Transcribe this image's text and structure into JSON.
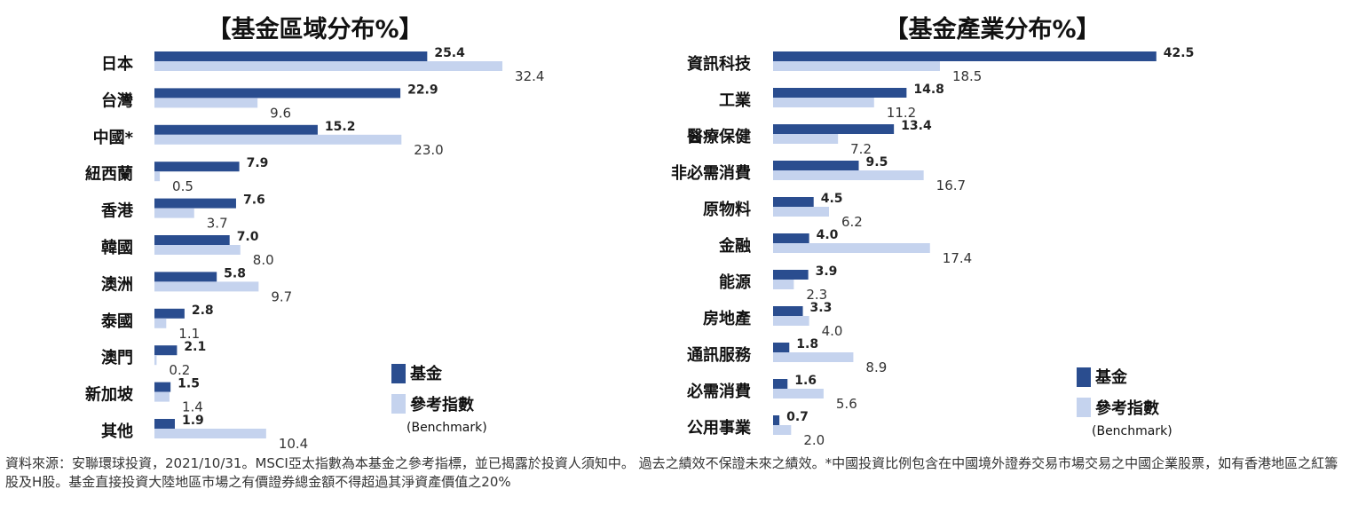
{
  "colors": {
    "fund": "#2a4d8f",
    "benchmark": "#c5d3ee"
  },
  "legend": {
    "fund": "基金",
    "benchmark": "參考指數",
    "benchmark_sub": "(Benchmark)"
  },
  "chart_data": [
    {
      "type": "bar",
      "title": "【基金區域分布%】",
      "categories": [
        "日本",
        "台灣",
        "中國*",
        "紐西蘭",
        "香港",
        "韓國",
        "澳洲",
        "泰國",
        "澳門",
        "新加坡",
        "其他"
      ],
      "series": [
        {
          "name": "基金",
          "values": [
            25.4,
            22.9,
            15.2,
            7.9,
            7.6,
            7.0,
            5.8,
            2.8,
            2.1,
            1.5,
            1.9
          ]
        },
        {
          "name": "參考指數",
          "values": [
            32.4,
            9.6,
            23.0,
            0.5,
            3.7,
            8.0,
            9.7,
            1.1,
            0.2,
            1.4,
            10.4
          ]
        }
      ]
    },
    {
      "type": "bar",
      "title": "【基金產業分布%】",
      "categories": [
        "資訊科技",
        "工業",
        "醫療保健",
        "非必需消費",
        "原物料",
        "金融",
        "能源",
        "房地產",
        "通訊服務",
        "必需消費",
        "公用事業"
      ],
      "series": [
        {
          "name": "基金",
          "values": [
            42.5,
            14.8,
            13.4,
            9.5,
            4.5,
            4.0,
            3.9,
            3.3,
            1.8,
            1.6,
            0.7
          ]
        },
        {
          "name": "參考指數",
          "values": [
            18.5,
            11.2,
            7.2,
            16.7,
            6.2,
            17.4,
            2.3,
            4.0,
            8.9,
            5.6,
            2.0
          ]
        }
      ]
    }
  ],
  "footnote": "資料來源：安聯環球投資，2021/10/31。MSCI亞太指數為本基金之參考指標，並已揭露於投資人須知中。 過去之績效不保證未來之績效。*中國投資比例包含在中國境外證券交易市場交易之中國企業股票，如有香港地區之紅籌股及H股。基金直接投資大陸地區市場之有價證券總金額不得超過其淨資產價值之20%"
}
